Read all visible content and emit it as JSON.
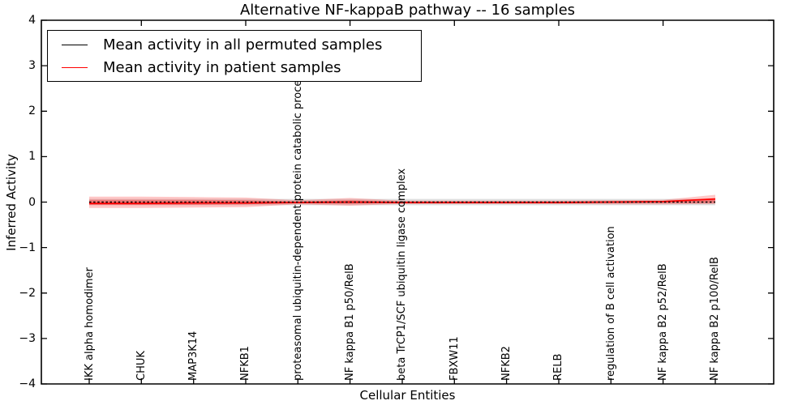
{
  "figure": {
    "title": "Alternative NF-kappaB pathway -- 16 samples",
    "background": "#ffffff"
  },
  "legend": {
    "position": "upper left",
    "items": [
      {
        "label": "Mean activity in all permuted samples",
        "color": "#000000"
      },
      {
        "label": "Mean activity in patient samples",
        "color": "#ff0000"
      }
    ]
  },
  "axes": {
    "xlabel": "Cellular Entities",
    "ylabel": "Inferred Activity",
    "ylim": [
      -4,
      4
    ],
    "yticks": [
      4,
      3,
      2,
      1,
      0,
      -1,
      -2,
      -3,
      -4
    ],
    "ytick_labels": [
      "4",
      "3",
      "2",
      "1",
      "0",
      "−1",
      "−2",
      "−3",
      "−4"
    ],
    "grid": false
  },
  "chart_data": {
    "type": "line",
    "title": "Alternative NF-kappaB pathway -- 16 samples",
    "xlabel": "Cellular Entities",
    "ylabel": "Inferred Activity",
    "ylim": [
      -4,
      4
    ],
    "yticks": [
      4,
      3,
      2,
      1,
      0,
      -1,
      -2,
      -3,
      -4
    ],
    "legend_position": "upper left",
    "grid": false,
    "categories": [
      "IKK alpha homodimer",
      "CHUK",
      "MAP3K14",
      "NFKB1",
      "proteasomal ubiquitin-dependent protein catabolic process",
      "NF kappa B1 p50/RelB",
      "beta TrCP1/SCF ubiquitin ligase complex",
      "FBXW11",
      "NFKB2",
      "RELB",
      "regulation of B cell activation",
      "NF kappa B2 p52/RelB",
      "NF kappa B2 p100/RelB"
    ],
    "series": [
      {
        "name": "Mean activity in all permuted samples",
        "color": "#000000",
        "line_style": "dashed",
        "values": [
          0,
          0,
          0,
          0,
          0,
          0,
          0,
          0,
          0,
          0,
          0,
          0,
          0
        ]
      },
      {
        "name": "Mean activity in patient samples",
        "color": "#ff0000",
        "line_style": "solid",
        "values": [
          -0.03,
          -0.03,
          -0.02,
          -0.02,
          -0.01,
          0.0,
          -0.01,
          -0.01,
          -0.01,
          -0.01,
          0.0,
          0.01,
          0.07
        ]
      }
    ],
    "bands": [
      {
        "name": "permuted-activity-range",
        "color": "#999999",
        "opacity": 0.32,
        "upper": [
          0.07,
          0.07,
          0.07,
          0.07,
          0.07,
          0.07,
          0.07,
          0.07,
          0.07,
          0.07,
          0.07,
          0.07,
          0.07
        ],
        "lower": [
          -0.07,
          -0.07,
          -0.07,
          -0.07,
          -0.07,
          -0.07,
          -0.07,
          -0.07,
          -0.07,
          -0.07,
          -0.07,
          -0.07,
          -0.07
        ]
      },
      {
        "name": "patient-activity-range-outer",
        "color": "#ff0000",
        "opacity": 0.22,
        "upper": [
          0.12,
          0.12,
          0.11,
          0.1,
          0.04,
          0.09,
          0.03,
          0.03,
          0.03,
          0.03,
          0.04,
          0.05,
          0.16
        ],
        "lower": [
          -0.13,
          -0.13,
          -0.12,
          -0.11,
          -0.05,
          -0.08,
          -0.04,
          -0.04,
          -0.04,
          -0.04,
          -0.05,
          -0.05,
          -0.04
        ]
      },
      {
        "name": "patient-activity-range-inner",
        "color": "#ff0000",
        "opacity": 0.3,
        "upper": [
          0.05,
          0.05,
          0.05,
          0.04,
          0.015,
          0.04,
          0.012,
          0.012,
          0.012,
          0.012,
          0.02,
          0.02,
          0.08
        ],
        "lower": [
          -0.06,
          -0.06,
          -0.06,
          -0.05,
          -0.02,
          -0.04,
          -0.015,
          -0.015,
          -0.015,
          -0.015,
          -0.02,
          -0.02,
          -0.02
        ]
      }
    ]
  }
}
